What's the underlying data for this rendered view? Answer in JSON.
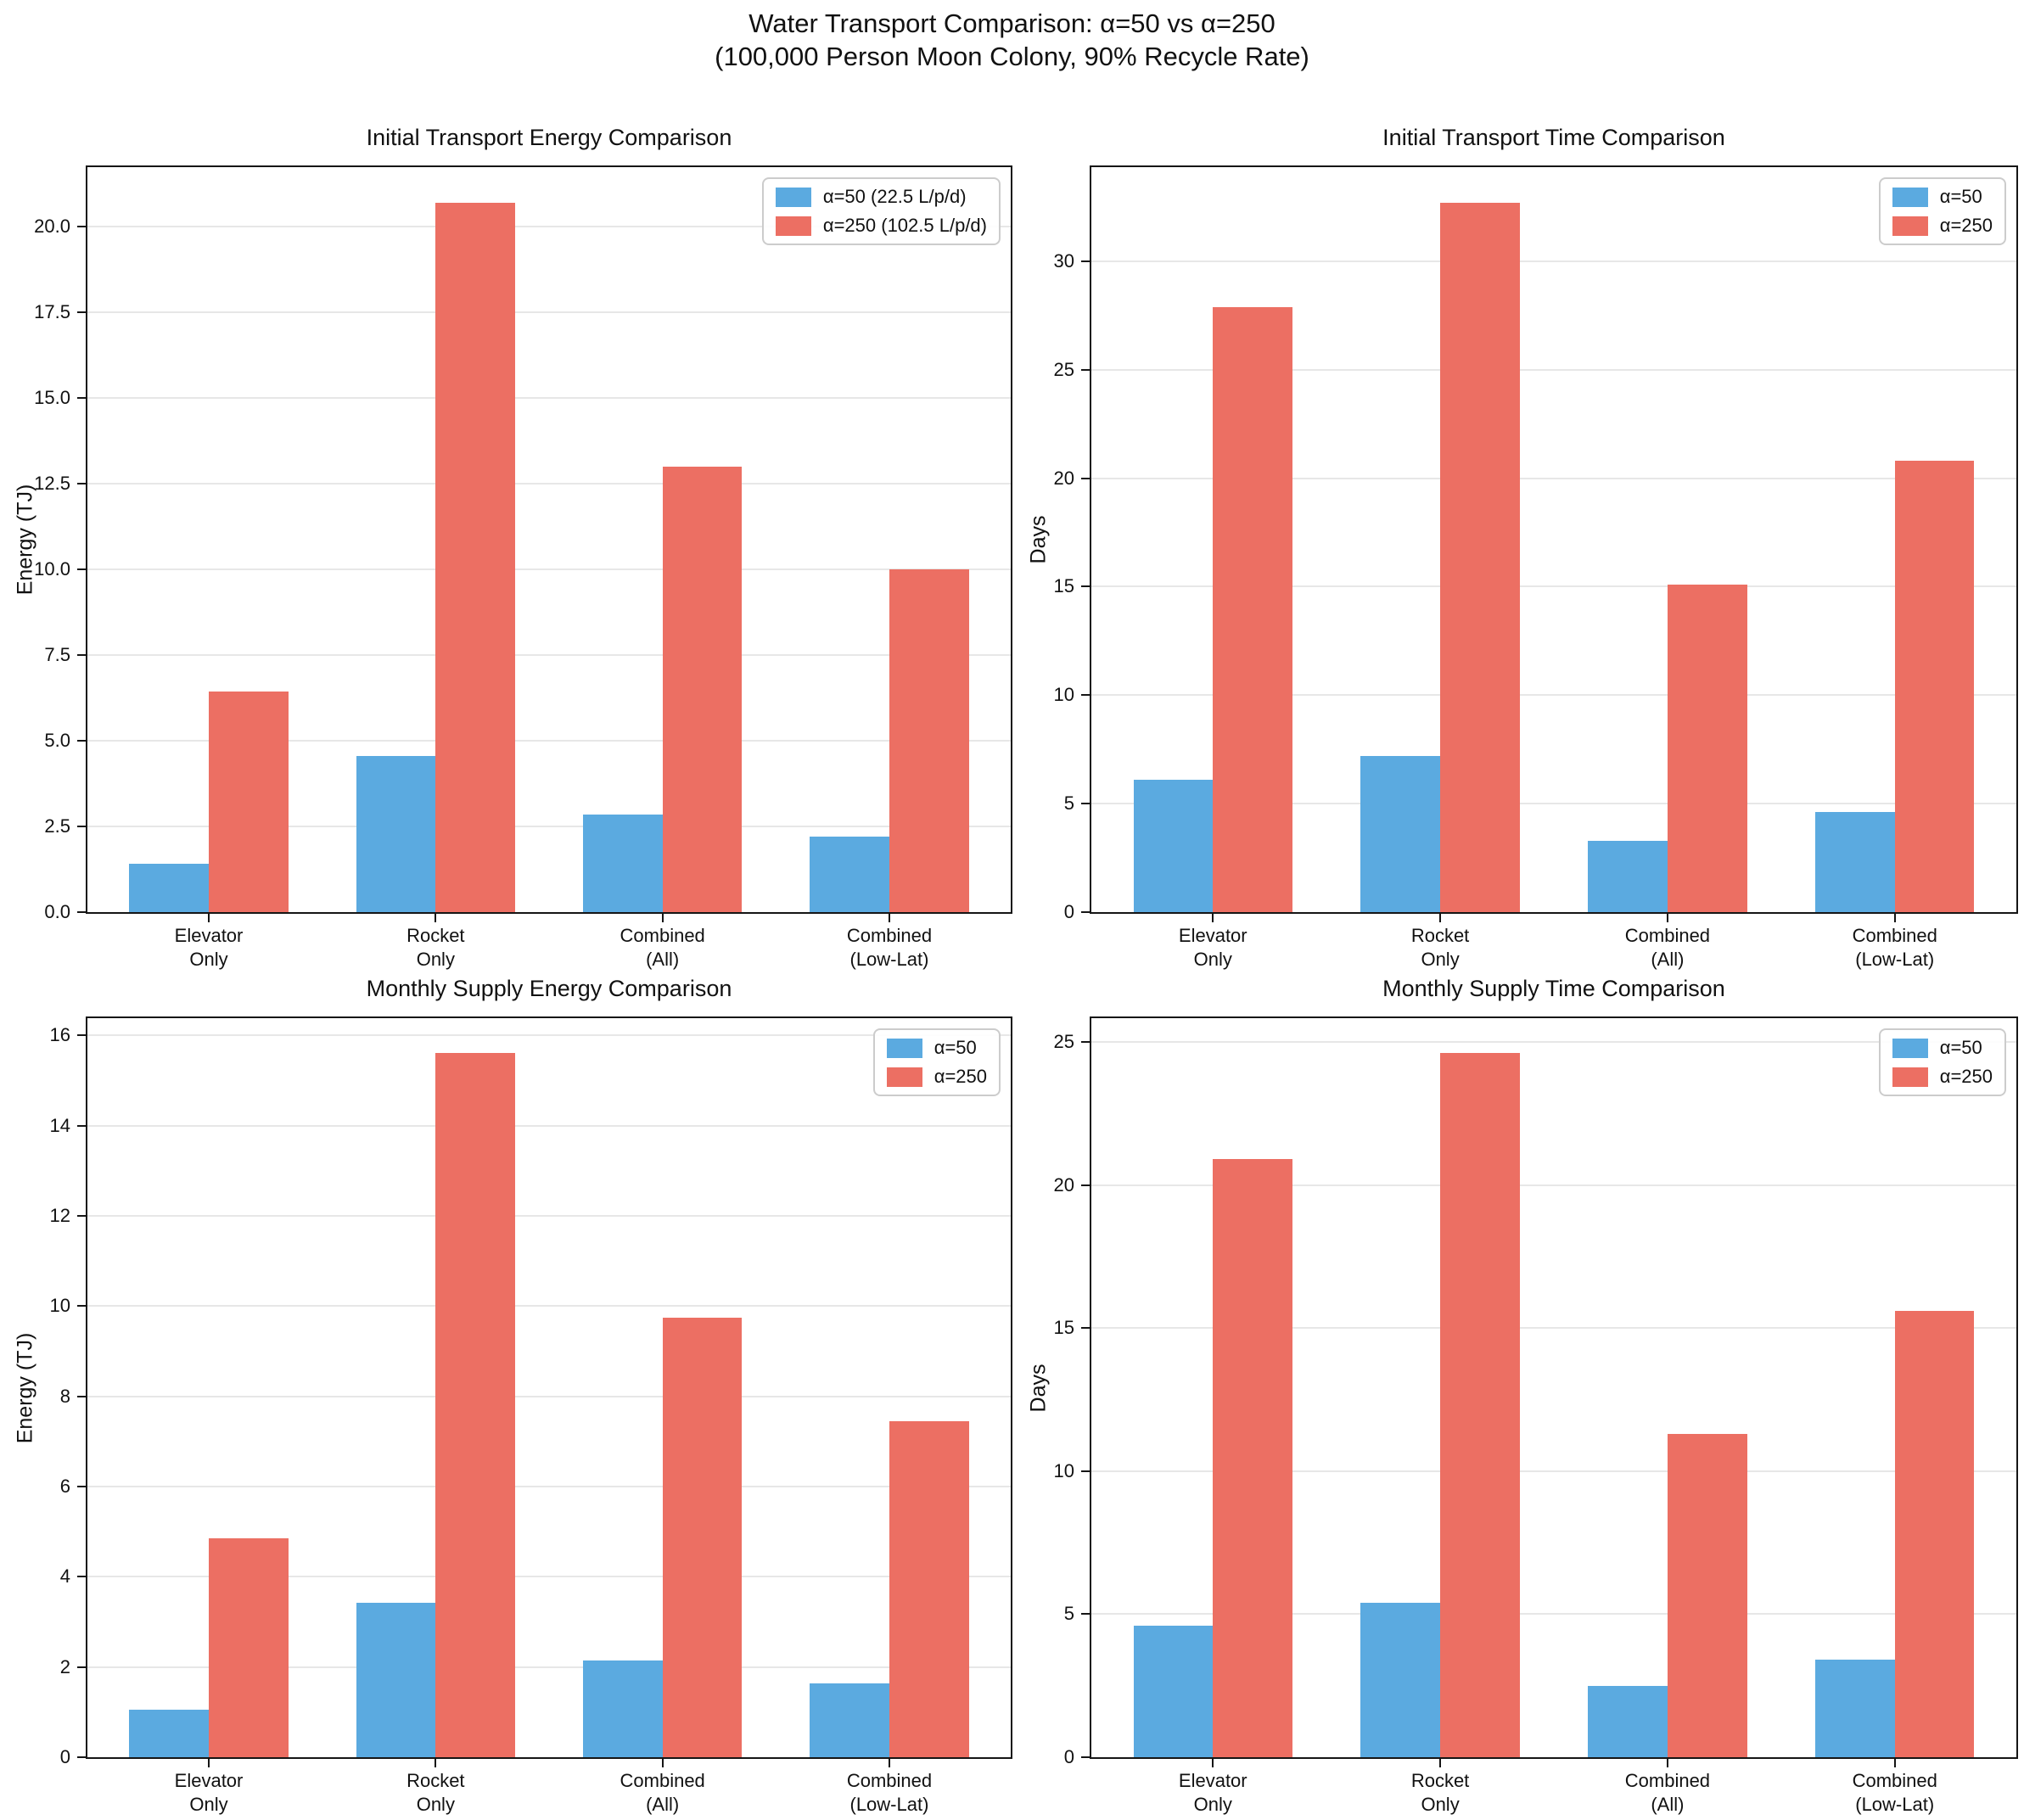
{
  "suptitle": {
    "line1": "Water Transport Comparison: α=50 vs α=250",
    "line2": "(100,000 Person Moon Colony, 90% Recycle Rate)"
  },
  "colors": {
    "alpha50": "#5BAAE0",
    "alpha250": "#EC6F63",
    "grid": "#e7e7e7",
    "spine": "#151515"
  },
  "chart_data": [
    {
      "id": "initial-energy",
      "type": "bar",
      "title": "Initial Transport Energy Comparison",
      "xlabel": "",
      "ylabel": "Energy (TJ)",
      "categories": [
        "Elevator\nOnly",
        "Rocket\nOnly",
        "Combined\n(All)",
        "Combined\n(Low-Lat)"
      ],
      "series": [
        {
          "name": "α=50 (22.5 L/p/d)",
          "color": "#5BAAE0",
          "values": [
            1.42,
            4.55,
            2.85,
            2.2
          ]
        },
        {
          "name": "α=250 (102.5 L/p/d)",
          "color": "#EC6F63",
          "values": [
            6.45,
            20.7,
            13.0,
            10.0
          ]
        }
      ],
      "ylim": [
        0,
        21.74
      ],
      "ytick_values": [
        0,
        2.5,
        5,
        7.5,
        10,
        12.5,
        15,
        17.5,
        20
      ],
      "ytick_labels": [
        "0.0",
        "2.5",
        "5.0",
        "7.5",
        "10.0",
        "12.5",
        "15.0",
        "17.5",
        "20.0"
      ],
      "bar_width": 0.35,
      "grid": true,
      "legend_position": "upper right"
    },
    {
      "id": "initial-time",
      "type": "bar",
      "title": "Initial Transport Time Comparison",
      "xlabel": "",
      "ylabel": "Days",
      "categories": [
        "Elevator\nOnly",
        "Rocket\nOnly",
        "Combined\n(All)",
        "Combined\n(Low-Lat)"
      ],
      "series": [
        {
          "name": "α=50",
          "color": "#5BAAE0",
          "values": [
            6.1,
            7.2,
            3.3,
            4.6
          ]
        },
        {
          "name": "α=250",
          "color": "#EC6F63",
          "values": [
            27.9,
            32.7,
            15.1,
            20.8
          ]
        }
      ],
      "ylim": [
        0,
        34.34
      ],
      "ytick_values": [
        0,
        5,
        10,
        15,
        20,
        25,
        30
      ],
      "ytick_labels": [
        "0",
        "5",
        "10",
        "15",
        "20",
        "25",
        "30"
      ],
      "bar_width": 0.35,
      "grid": true,
      "legend_position": "upper right"
    },
    {
      "id": "monthly-energy",
      "type": "bar",
      "title": "Monthly Supply Energy Comparison",
      "xlabel": "",
      "ylabel": "Energy (TJ)",
      "categories": [
        "Elevator\nOnly",
        "Rocket\nOnly",
        "Combined\n(All)",
        "Combined\n(Low-Lat)"
      ],
      "series": [
        {
          "name": "α=50",
          "color": "#5BAAE0",
          "values": [
            1.06,
            3.42,
            2.14,
            1.64
          ]
        },
        {
          "name": "α=250",
          "color": "#EC6F63",
          "values": [
            4.85,
            15.6,
            9.75,
            7.45
          ]
        }
      ],
      "ylim": [
        0,
        16.38
      ],
      "ytick_values": [
        0,
        2,
        4,
        6,
        8,
        10,
        12,
        14,
        16
      ],
      "ytick_labels": [
        "0",
        "2",
        "4",
        "6",
        "8",
        "10",
        "12",
        "14",
        "16"
      ],
      "bar_width": 0.35,
      "grid": true,
      "legend_position": "upper right"
    },
    {
      "id": "monthly-time",
      "type": "bar",
      "title": "Monthly Supply Time Comparison",
      "xlabel": "",
      "ylabel": "Days",
      "categories": [
        "Elevator\nOnly",
        "Rocket\nOnly",
        "Combined\n(All)",
        "Combined\n(Low-Lat)"
      ],
      "series": [
        {
          "name": "α=50",
          "color": "#5BAAE0",
          "values": [
            4.6,
            5.4,
            2.5,
            3.4
          ]
        },
        {
          "name": "α=250",
          "color": "#EC6F63",
          "values": [
            20.9,
            24.6,
            11.3,
            15.6
          ]
        }
      ],
      "ylim": [
        0,
        25.83
      ],
      "ytick_values": [
        0,
        5,
        10,
        15,
        20,
        25
      ],
      "ytick_labels": [
        "0",
        "5",
        "10",
        "15",
        "20",
        "25"
      ],
      "bar_width": 0.35,
      "grid": true,
      "legend_position": "upper right"
    }
  ]
}
